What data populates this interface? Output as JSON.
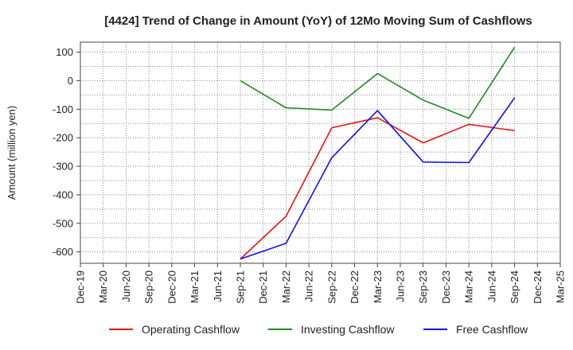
{
  "chart_data": {
    "type": "line",
    "title": "[4424]  Trend of Change in Amount (YoY) of 12Mo Moving Sum of Cashflows",
    "xlabel": "",
    "ylabel": "Amount (million yen)",
    "categories": [
      "Dec-19",
      "Mar-20",
      "Jun-20",
      "Sep-20",
      "Dec-20",
      "Mar-21",
      "Jun-21",
      "Sep-21",
      "Dec-21",
      "Mar-22",
      "Jun-22",
      "Sep-22",
      "Dec-22",
      "Mar-23",
      "Jun-23",
      "Sep-23",
      "Dec-23",
      "Mar-24",
      "Jun-24",
      "Sep-24",
      "Dec-24",
      "Mar-25"
    ],
    "ylim": [
      -640,
      135
    ],
    "yticks": [
      100,
      0,
      -100,
      -200,
      -300,
      -400,
      -500,
      -600
    ],
    "ytick_labels": [
      "100",
      "0",
      "-100",
      "-200",
      "-300",
      "-400",
      "-500",
      "-600"
    ],
    "grid": true,
    "legend_position": "bottom",
    "series": [
      {
        "name": "Operating Cashflow",
        "color": "#ee1111",
        "x": [
          "Sep-21",
          "Mar-22",
          "Sep-22",
          "Mar-23",
          "Sep-23",
          "Mar-24",
          "Sep-24"
        ],
        "values": [
          -625,
          -475,
          -165,
          -130,
          -218,
          -153,
          -175
        ]
      },
      {
        "name": "Investing Cashflow",
        "color": "#228822",
        "x": [
          "Sep-21",
          "Mar-22",
          "Sep-22",
          "Mar-23",
          "Sep-23",
          "Mar-24",
          "Sep-24"
        ],
        "values": [
          0,
          -95,
          -103,
          25,
          -68,
          -132,
          117
        ]
      },
      {
        "name": "Free Cashflow",
        "color": "#1111ee",
        "x": [
          "Sep-21",
          "Mar-22",
          "Sep-22",
          "Mar-23",
          "Sep-23",
          "Mar-24",
          "Sep-24"
        ],
        "values": [
          -625,
          -570,
          -270,
          -105,
          -285,
          -287,
          -60
        ]
      }
    ]
  }
}
